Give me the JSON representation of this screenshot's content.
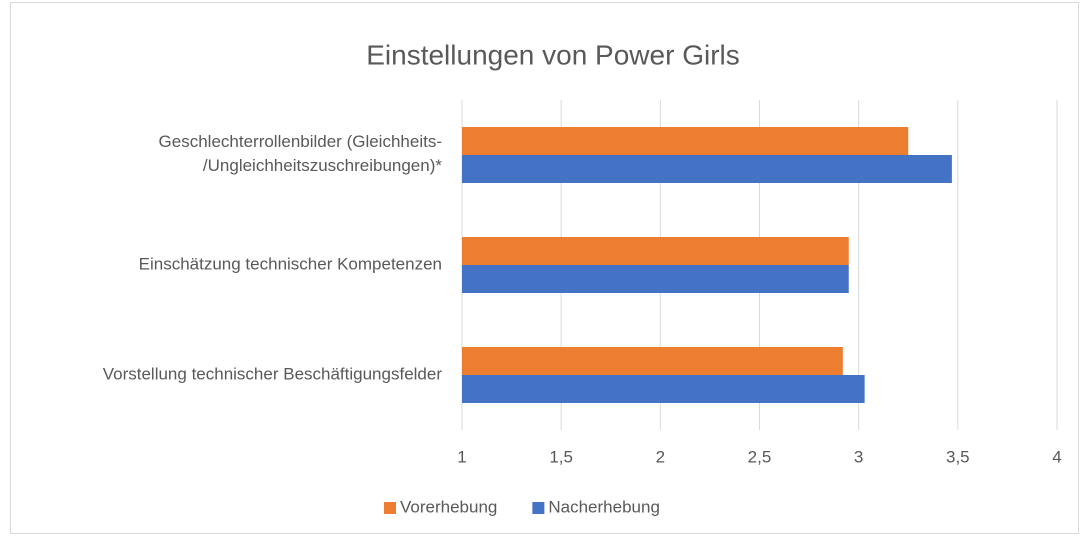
{
  "chart_data": {
    "type": "bar",
    "orientation": "horizontal",
    "title": "Einstellungen von Power Girls",
    "categories": [
      "Geschlechterrollenbilder (Gleichheits-\n/Ungleichheitszuschreibungen)*",
      "Einschätzung technischer Kompetenzen",
      "Vorstellung technischer Beschäftigungsfelder"
    ],
    "series": [
      {
        "name": "Vorerhebung",
        "color": "#ed7d31",
        "values": [
          3.25,
          2.95,
          2.92
        ]
      },
      {
        "name": "Nacherhebung",
        "color": "#4472c4",
        "values": [
          3.47,
          2.95,
          3.03
        ]
      }
    ],
    "xlim": [
      1,
      4
    ],
    "xticks": [
      1,
      {
        "value": 1.5,
        "label": "1,5"
      },
      2,
      {
        "value": 2.5,
        "label": "2,5"
      },
      3,
      {
        "value": 3.5,
        "label": "3,5"
      },
      4
    ],
    "grid": true,
    "legend": "bottom"
  }
}
